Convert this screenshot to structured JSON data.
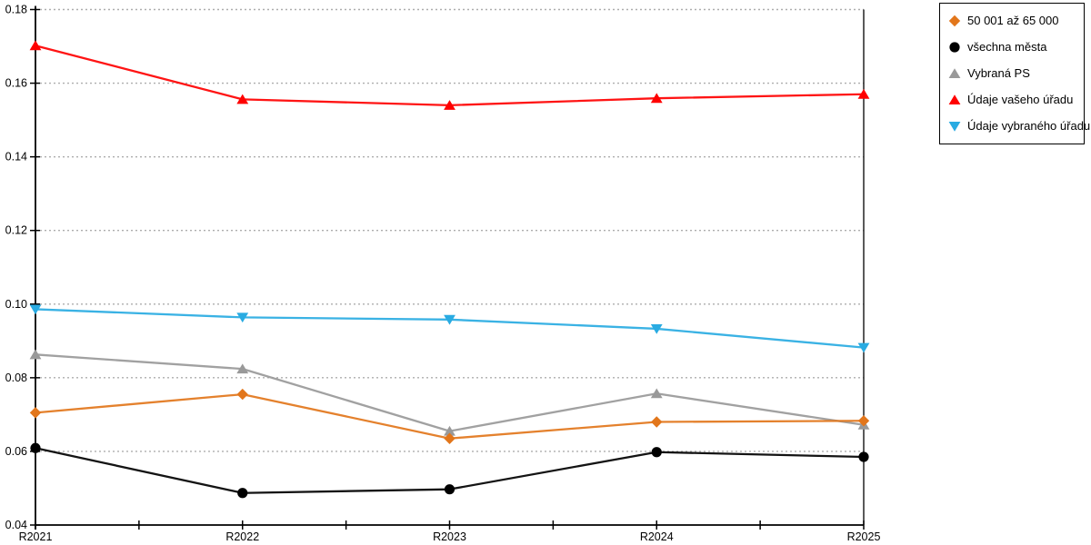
{
  "chart_data": {
    "type": "line",
    "title": "",
    "xlabel": "",
    "ylabel": "",
    "categories": [
      "R2021",
      "R2022",
      "R2023",
      "R2024",
      "R2025"
    ],
    "series": [
      {
        "name": "50 001 až 65 000",
        "color": "#E2761B",
        "marker": "diamond",
        "values": [
          0.0705,
          0.0755,
          0.0635,
          0.068,
          0.0683
        ]
      },
      {
        "name": "všechna města",
        "color": "#000000",
        "marker": "circle",
        "values": [
          0.0609,
          0.0487,
          0.0497,
          0.0598,
          0.0585
        ]
      },
      {
        "name": "Vybraná PS",
        "color": "#999999",
        "marker": "triangle-up",
        "values": [
          0.0863,
          0.0824,
          0.0655,
          0.0757,
          0.0672
        ]
      },
      {
        "name": "Údaje vašeho úřadu",
        "color": "#FF0000",
        "marker": "triangle-up",
        "values": [
          0.1702,
          0.1556,
          0.154,
          0.1559,
          0.157
        ]
      },
      {
        "name": "Údaje vybraného úřadu",
        "color": "#29ABE2",
        "marker": "triangle-down",
        "values": [
          0.0986,
          0.0964,
          0.0958,
          0.0933,
          0.0882
        ]
      }
    ],
    "ylim": [
      0.04,
      0.18
    ],
    "y_tick_step": 0.02,
    "y_tick_labels": [
      "0.04",
      "0.06",
      "0.08",
      "0.10",
      "0.12",
      "0.14",
      "0.16",
      "0.18"
    ],
    "grid": "horizontal-dotted",
    "legend_position": "top-right",
    "colors": {
      "background": "#FFFFFF",
      "axis": "#000000",
      "grid": "#ADADAD",
      "tick_label": "#000000"
    }
  }
}
